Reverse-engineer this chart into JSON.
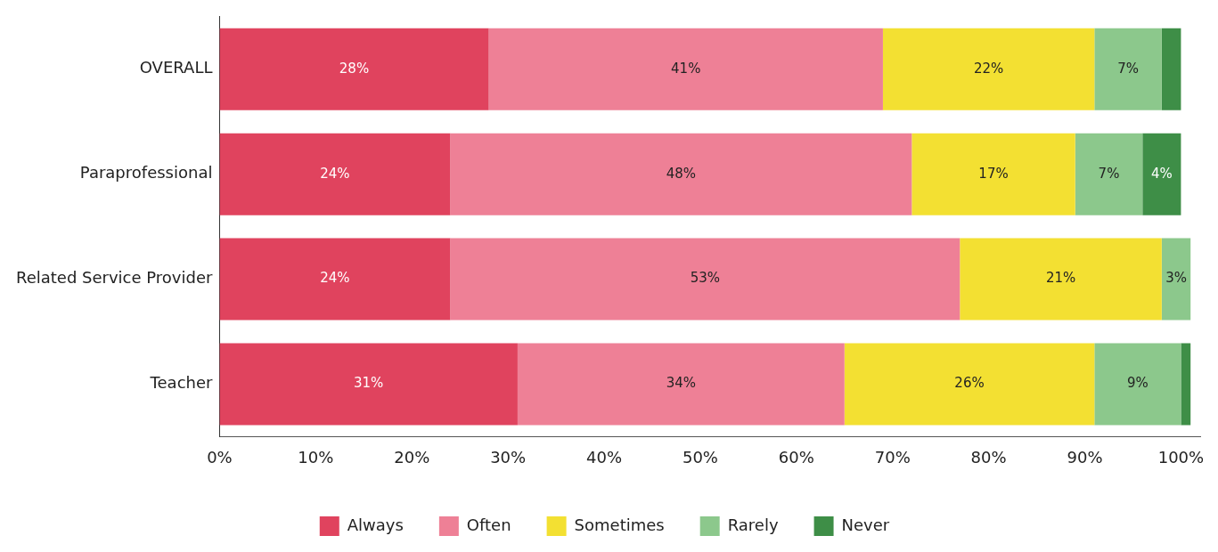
{
  "chart_data": {
    "type": "bar",
    "orientation": "horizontal",
    "stacked": true,
    "categories": [
      "OVERALL",
      "Paraprofessional",
      "Related Service Provider",
      "Teacher"
    ],
    "series": [
      {
        "name": "Always",
        "color": "#e0435e",
        "values": [
          28,
          24,
          24,
          31
        ],
        "value_labels": [
          "28%",
          "24%",
          "24%",
          "31%"
        ]
      },
      {
        "name": "Often",
        "color": "#ee8096",
        "values": [
          41,
          48,
          53,
          34
        ],
        "value_labels": [
          "41%",
          "48%",
          "53%",
          "34%"
        ]
      },
      {
        "name": "Sometimes",
        "color": "#f3e032",
        "values": [
          22,
          17,
          21,
          26
        ],
        "value_labels": [
          "22%",
          "17%",
          "21%",
          "26%"
        ]
      },
      {
        "name": "Rarely",
        "color": "#8cc88c",
        "values": [
          7,
          7,
          3,
          9
        ],
        "value_labels": [
          "7%",
          "7%",
          "3%",
          "9%"
        ]
      },
      {
        "name": "Never",
        "color": "#3e8e47",
        "values": [
          2,
          4,
          0,
          1
        ],
        "value_labels": [
          null,
          "4%",
          null,
          null
        ]
      }
    ],
    "xlim": [
      0,
      102
    ],
    "xticks": [
      {
        "value": 0,
        "label": "0%"
      },
      {
        "value": 10,
        "label": "10%"
      },
      {
        "value": 20,
        "label": "20%"
      },
      {
        "value": 30,
        "label": "30%"
      },
      {
        "value": 40,
        "label": "40%"
      },
      {
        "value": 50,
        "label": "50%"
      },
      {
        "value": 60,
        "label": "60%"
      },
      {
        "value": 70,
        "label": "70%"
      },
      {
        "value": 80,
        "label": "80%"
      },
      {
        "value": 90,
        "label": "90%"
      },
      {
        "value": 100,
        "label": "100%"
      }
    ],
    "grid": false,
    "legend": "bottom"
  }
}
